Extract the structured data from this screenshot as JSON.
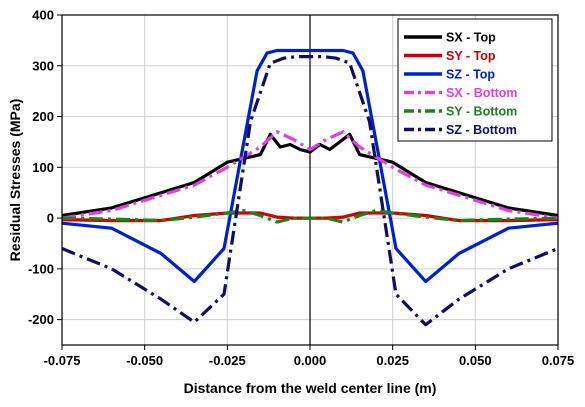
{
  "chart_data": {
    "type": "line",
    "title": "",
    "xlabel": "Distance from the weld center line (m)",
    "ylabel": "Residual Stresses (MPa)",
    "xlim": [
      -0.075,
      0.075
    ],
    "ylim": [
      -250,
      400
    ],
    "xticks": [
      "-0.075",
      "-0.050",
      "-0.025",
      "0.000",
      "0.025",
      "0.050",
      "0.075"
    ],
    "xtick_values": [
      -0.075,
      -0.05,
      -0.025,
      0,
      0.025,
      0.05,
      0.075
    ],
    "yticks": [
      "-200",
      "-100",
      "0",
      "100",
      "200",
      "300",
      "400"
    ],
    "ytick_values": [
      -200,
      -100,
      0,
      100,
      200,
      300,
      400
    ],
    "grid": true,
    "legend_position": "top-right",
    "series": [
      {
        "name": "SX - Top",
        "color": "#000000",
        "dash": "solid",
        "x": [
          -0.075,
          -0.06,
          -0.05,
          -0.035,
          -0.025,
          -0.015,
          -0.012,
          -0.009,
          -0.006,
          -0.003,
          0,
          0.003,
          0.006,
          0.009,
          0.012,
          0.015,
          0.025,
          0.035,
          0.05,
          0.06,
          0.075
        ],
        "y": [
          5,
          20,
          40,
          70,
          110,
          125,
          165,
          140,
          145,
          135,
          130,
          145,
          135,
          150,
          165,
          125,
          110,
          70,
          40,
          20,
          5
        ]
      },
      {
        "name": "SY - Top",
        "color": "#cc0000",
        "dash": "solid",
        "x": [
          -0.075,
          -0.06,
          -0.045,
          -0.035,
          -0.025,
          -0.015,
          -0.01,
          -0.005,
          0,
          0.005,
          0.01,
          0.015,
          0.025,
          0.035,
          0.045,
          0.06,
          0.075
        ],
        "y": [
          -3,
          -5,
          -5,
          5,
          10,
          10,
          2,
          0,
          0,
          0,
          2,
          10,
          10,
          5,
          -5,
          -5,
          -3
        ]
      },
      {
        "name": "SZ - Top",
        "color": "#0020cc",
        "dash": "solid",
        "x": [
          -0.075,
          -0.06,
          -0.045,
          -0.035,
          -0.026,
          -0.016,
          -0.013,
          -0.01,
          -0.005,
          0,
          0.005,
          0.01,
          0.013,
          0.016,
          0.026,
          0.035,
          0.045,
          0.06,
          0.075
        ],
        "y": [
          -10,
          -20,
          -70,
          -125,
          -60,
          290,
          325,
          330,
          330,
          330,
          330,
          330,
          325,
          290,
          -60,
          -125,
          -70,
          -20,
          -10
        ]
      },
      {
        "name": "SX - Bottom",
        "color": "#e040e0",
        "dash": "dashdot",
        "x": [
          -0.075,
          -0.06,
          -0.045,
          -0.035,
          -0.025,
          -0.015,
          -0.01,
          -0.005,
          0,
          0.005,
          0.01,
          0.015,
          0.025,
          0.035,
          0.045,
          0.06,
          0.075
        ],
        "y": [
          0,
          15,
          45,
          65,
          100,
          140,
          170,
          155,
          135,
          155,
          170,
          140,
          100,
          65,
          45,
          15,
          0
        ]
      },
      {
        "name": "SY - Bottom",
        "color": "#208020",
        "dash": "dashdot",
        "x": [
          -0.075,
          -0.06,
          -0.045,
          -0.035,
          -0.025,
          -0.02,
          -0.015,
          -0.01,
          -0.005,
          0,
          0.005,
          0.01,
          0.015,
          0.02,
          0.025,
          0.035,
          0.045,
          0.06,
          0.075
        ],
        "y": [
          0,
          -2,
          -5,
          2,
          10,
          15,
          5,
          -8,
          0,
          0,
          0,
          -8,
          5,
          15,
          10,
          2,
          -5,
          -2,
          0
        ]
      },
      {
        "name": "SZ - Bottom",
        "color": "#101060",
        "dash": "dashdot",
        "x": [
          -0.075,
          -0.06,
          -0.045,
          -0.035,
          -0.026,
          -0.018,
          -0.012,
          -0.008,
          -0.004,
          0,
          0.004,
          0.008,
          0.012,
          0.018,
          0.026,
          0.035,
          0.045,
          0.06,
          0.075
        ],
        "y": [
          -60,
          -100,
          -160,
          -205,
          -150,
          190,
          305,
          315,
          318,
          318,
          318,
          315,
          305,
          190,
          -150,
          -210,
          -160,
          -100,
          -60
        ]
      }
    ]
  }
}
